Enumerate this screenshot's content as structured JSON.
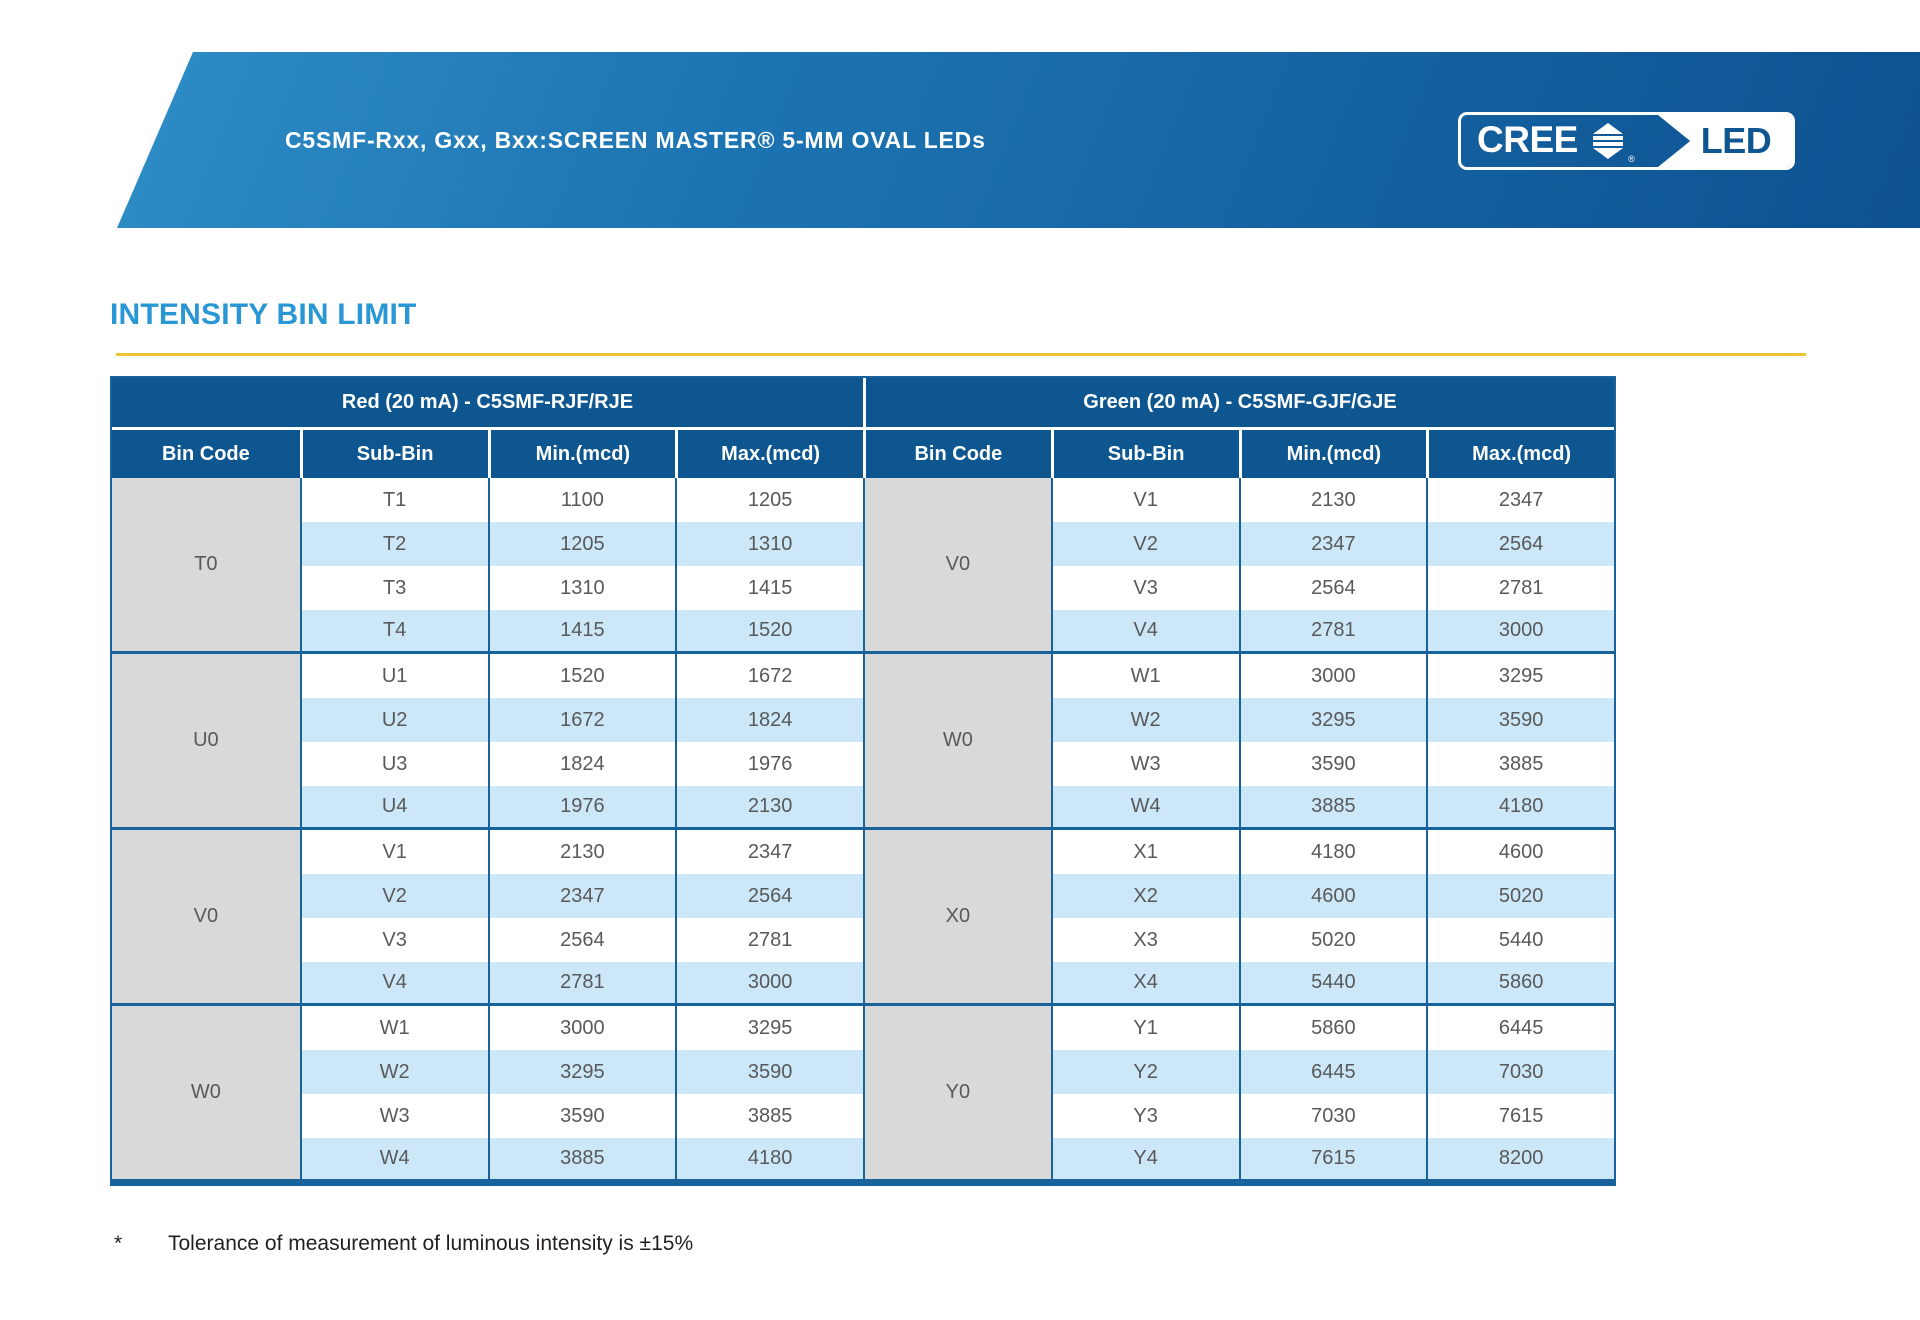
{
  "header": {
    "title": "C5SMF-Rxx, Gxx, Bxx:SCREEN MASTER® 5-MM OVAL LEDs",
    "logo": {
      "cree": "CREE",
      "led": "LED",
      "registered": "®"
    }
  },
  "section": {
    "title": "INTENSITY BIN LIMIT"
  },
  "table": {
    "left": {
      "group_header": "Red (20 mA) - C5SMF-RJF/RJE",
      "columns": [
        "Bin Code",
        "Sub-Bin",
        "Min.(mcd)",
        "Max.(mcd)"
      ],
      "groups": [
        {
          "bin": "T0",
          "rows": [
            [
              "T1",
              "1100",
              "1205"
            ],
            [
              "T2",
              "1205",
              "1310"
            ],
            [
              "T3",
              "1310",
              "1415"
            ],
            [
              "T4",
              "1415",
              "1520"
            ]
          ]
        },
        {
          "bin": "U0",
          "rows": [
            [
              "U1",
              "1520",
              "1672"
            ],
            [
              "U2",
              "1672",
              "1824"
            ],
            [
              "U3",
              "1824",
              "1976"
            ],
            [
              "U4",
              "1976",
              "2130"
            ]
          ]
        },
        {
          "bin": "V0",
          "rows": [
            [
              "V1",
              "2130",
              "2347"
            ],
            [
              "V2",
              "2347",
              "2564"
            ],
            [
              "V3",
              "2564",
              "2781"
            ],
            [
              "V4",
              "2781",
              "3000"
            ]
          ]
        },
        {
          "bin": "W0",
          "rows": [
            [
              "W1",
              "3000",
              "3295"
            ],
            [
              "W2",
              "3295",
              "3590"
            ],
            [
              "W3",
              "3590",
              "3885"
            ],
            [
              "W4",
              "3885",
              "4180"
            ]
          ]
        }
      ]
    },
    "right": {
      "group_header": "Green (20 mA) - C5SMF-GJF/GJE",
      "columns": [
        "Bin Code",
        "Sub-Bin",
        "Min.(mcd)",
        "Max.(mcd)"
      ],
      "groups": [
        {
          "bin": "V0",
          "rows": [
            [
              "V1",
              "2130",
              "2347"
            ],
            [
              "V2",
              "2347",
              "2564"
            ],
            [
              "V3",
              "2564",
              "2781"
            ],
            [
              "V4",
              "2781",
              "3000"
            ]
          ]
        },
        {
          "bin": "W0",
          "rows": [
            [
              "W1",
              "3000",
              "3295"
            ],
            [
              "W2",
              "3295",
              "3590"
            ],
            [
              "W3",
              "3590",
              "3885"
            ],
            [
              "W4",
              "3885",
              "4180"
            ]
          ]
        },
        {
          "bin": "X0",
          "rows": [
            [
              "X1",
              "4180",
              "4600"
            ],
            [
              "X2",
              "4600",
              "5020"
            ],
            [
              "X3",
              "5020",
              "5440"
            ],
            [
              "X4",
              "5440",
              "5860"
            ]
          ]
        },
        {
          "bin": "Y0",
          "rows": [
            [
              "Y1",
              "5860",
              "6445"
            ],
            [
              "Y2",
              "6445",
              "7030"
            ],
            [
              "Y3",
              "7030",
              "7615"
            ],
            [
              "Y4",
              "7615",
              "8200"
            ]
          ]
        }
      ]
    }
  },
  "footnote": {
    "marker": "*",
    "text": "Tolerance of measurement of luminous intensity is ±15%"
  },
  "colors": {
    "banner_gradient_start": "#3191ca",
    "banner_gradient_end": "#0d5190",
    "header_blue": "#0e568f",
    "border_blue": "#19639d",
    "stripe_blue": "#cbe7f8",
    "bin_gray": "#d9d9da",
    "heading_blue": "#2997d4",
    "rule_yellow": "#eec437",
    "cell_text": "#58595b"
  }
}
